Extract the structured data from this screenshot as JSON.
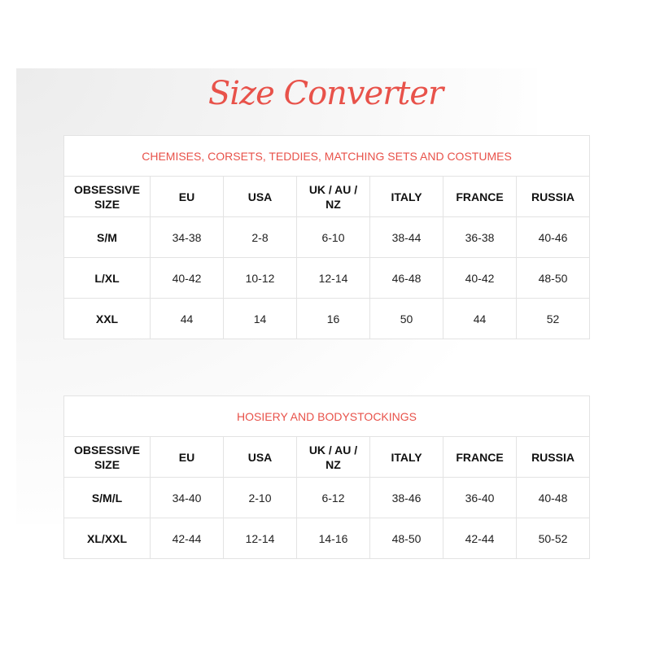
{
  "title": "Size Converter",
  "accent_color": "#e8524a",
  "columns": [
    "OBSESSIVE SIZE",
    "EU",
    "USA",
    "UK / AU / NZ",
    "ITALY",
    "FRANCE",
    "RUSSIA"
  ],
  "tables": [
    {
      "caption": "CHEMISES, CORSETS, TEDDIES, MATCHING SETS AND COSTUMES",
      "rows": [
        [
          "S/M",
          "34-38",
          "2-8",
          "6-10",
          "38-44",
          "36-38",
          "40-46"
        ],
        [
          "L/XL",
          "40-42",
          "10-12",
          "12-14",
          "46-48",
          "40-42",
          "48-50"
        ],
        [
          "XXL",
          "44",
          "14",
          "16",
          "50",
          "44",
          "52"
        ]
      ]
    },
    {
      "caption": "HOSIERY AND BODYSTOCKINGS",
      "rows": [
        [
          "S/M/L",
          "34-40",
          "2-10",
          "6-12",
          "38-46",
          "36-40",
          "40-48"
        ],
        [
          "XL/XXL",
          "42-44",
          "12-14",
          "14-16",
          "48-50",
          "42-44",
          "50-52"
        ]
      ]
    }
  ]
}
